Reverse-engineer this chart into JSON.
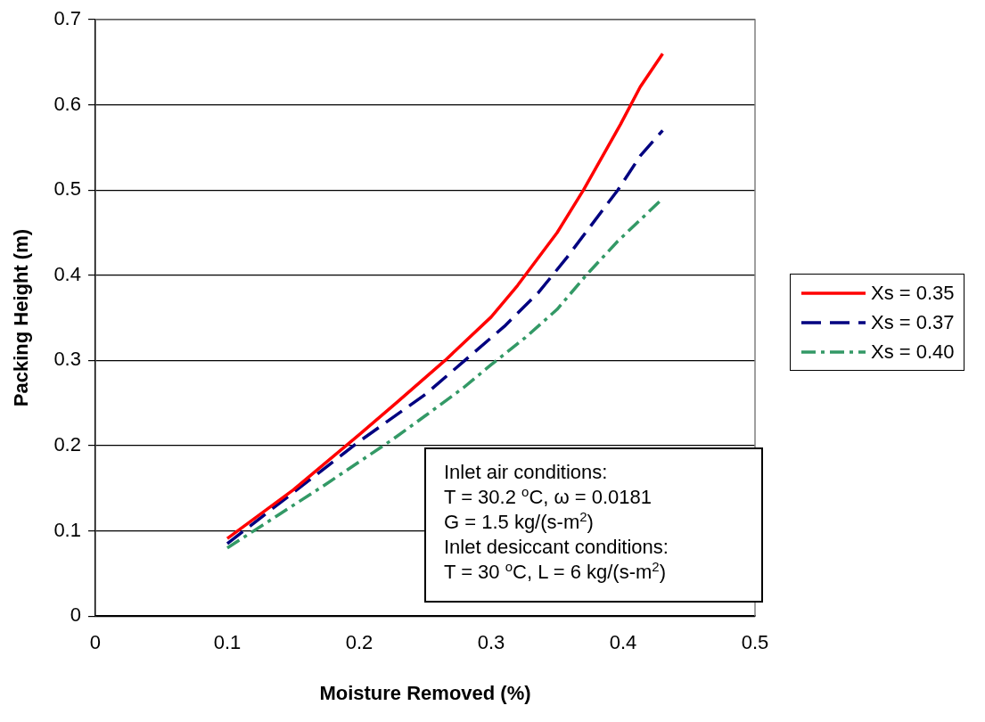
{
  "chart_data": {
    "type": "line",
    "xlabel": "Moisture Removed (%)",
    "ylabel": "Packing Height (m)",
    "xlim": [
      0,
      0.5
    ],
    "xticks": [
      0,
      0.1,
      0.2,
      0.3,
      0.4,
      0.5
    ],
    "ylim": [
      0,
      0.7
    ],
    "yticks": [
      0,
      0.1,
      0.2,
      0.3,
      0.4,
      0.5,
      0.6,
      0.7
    ],
    "grid": "y",
    "legend": "right",
    "marker": "none",
    "series": [
      {
        "name": "Xs = 0.35",
        "color": "#ff0000",
        "line_style": "solid",
        "x": [
          0.1,
          0.15,
          0.2,
          0.228,
          0.265,
          0.3,
          0.32,
          0.35,
          0.37,
          0.398,
          0.413,
          0.43
        ],
        "values": [
          0.091,
          0.148,
          0.213,
          0.25,
          0.3,
          0.351,
          0.388,
          0.45,
          0.5,
          0.577,
          0.621,
          0.66
        ]
      },
      {
        "name": "Xs = 0.37",
        "color": "#000080",
        "line_style": "dashed",
        "x": [
          0.1,
          0.15,
          0.2,
          0.25,
          0.28,
          0.31,
          0.336,
          0.357,
          0.396,
          0.413,
          0.43
        ],
        "values": [
          0.085,
          0.145,
          0.205,
          0.26,
          0.3,
          0.34,
          0.38,
          0.42,
          0.5,
          0.54,
          0.57
        ]
      },
      {
        "name": "Xs = 0.40",
        "color": "#339966",
        "line_style": "dashdot",
        "x": [
          0.1,
          0.14,
          0.174,
          0.225,
          0.25,
          0.279,
          0.3,
          0.326,
          0.35,
          0.372,
          0.396,
          0.43
        ],
        "values": [
          0.08,
          0.12,
          0.154,
          0.207,
          0.235,
          0.268,
          0.295,
          0.327,
          0.36,
          0.4,
          0.44,
          0.49
        ]
      }
    ],
    "annotations": [
      "Inlet air conditions:\nT = 30.2 $^{o}$C, ω = 0.0181\nG = 1.5 kg/(s-m$^{2}$)\nInlet desiccant conditions:\nT = 30 $^{o}$C, L = 6 kg/(s-m$^{2}$)"
    ]
  }
}
